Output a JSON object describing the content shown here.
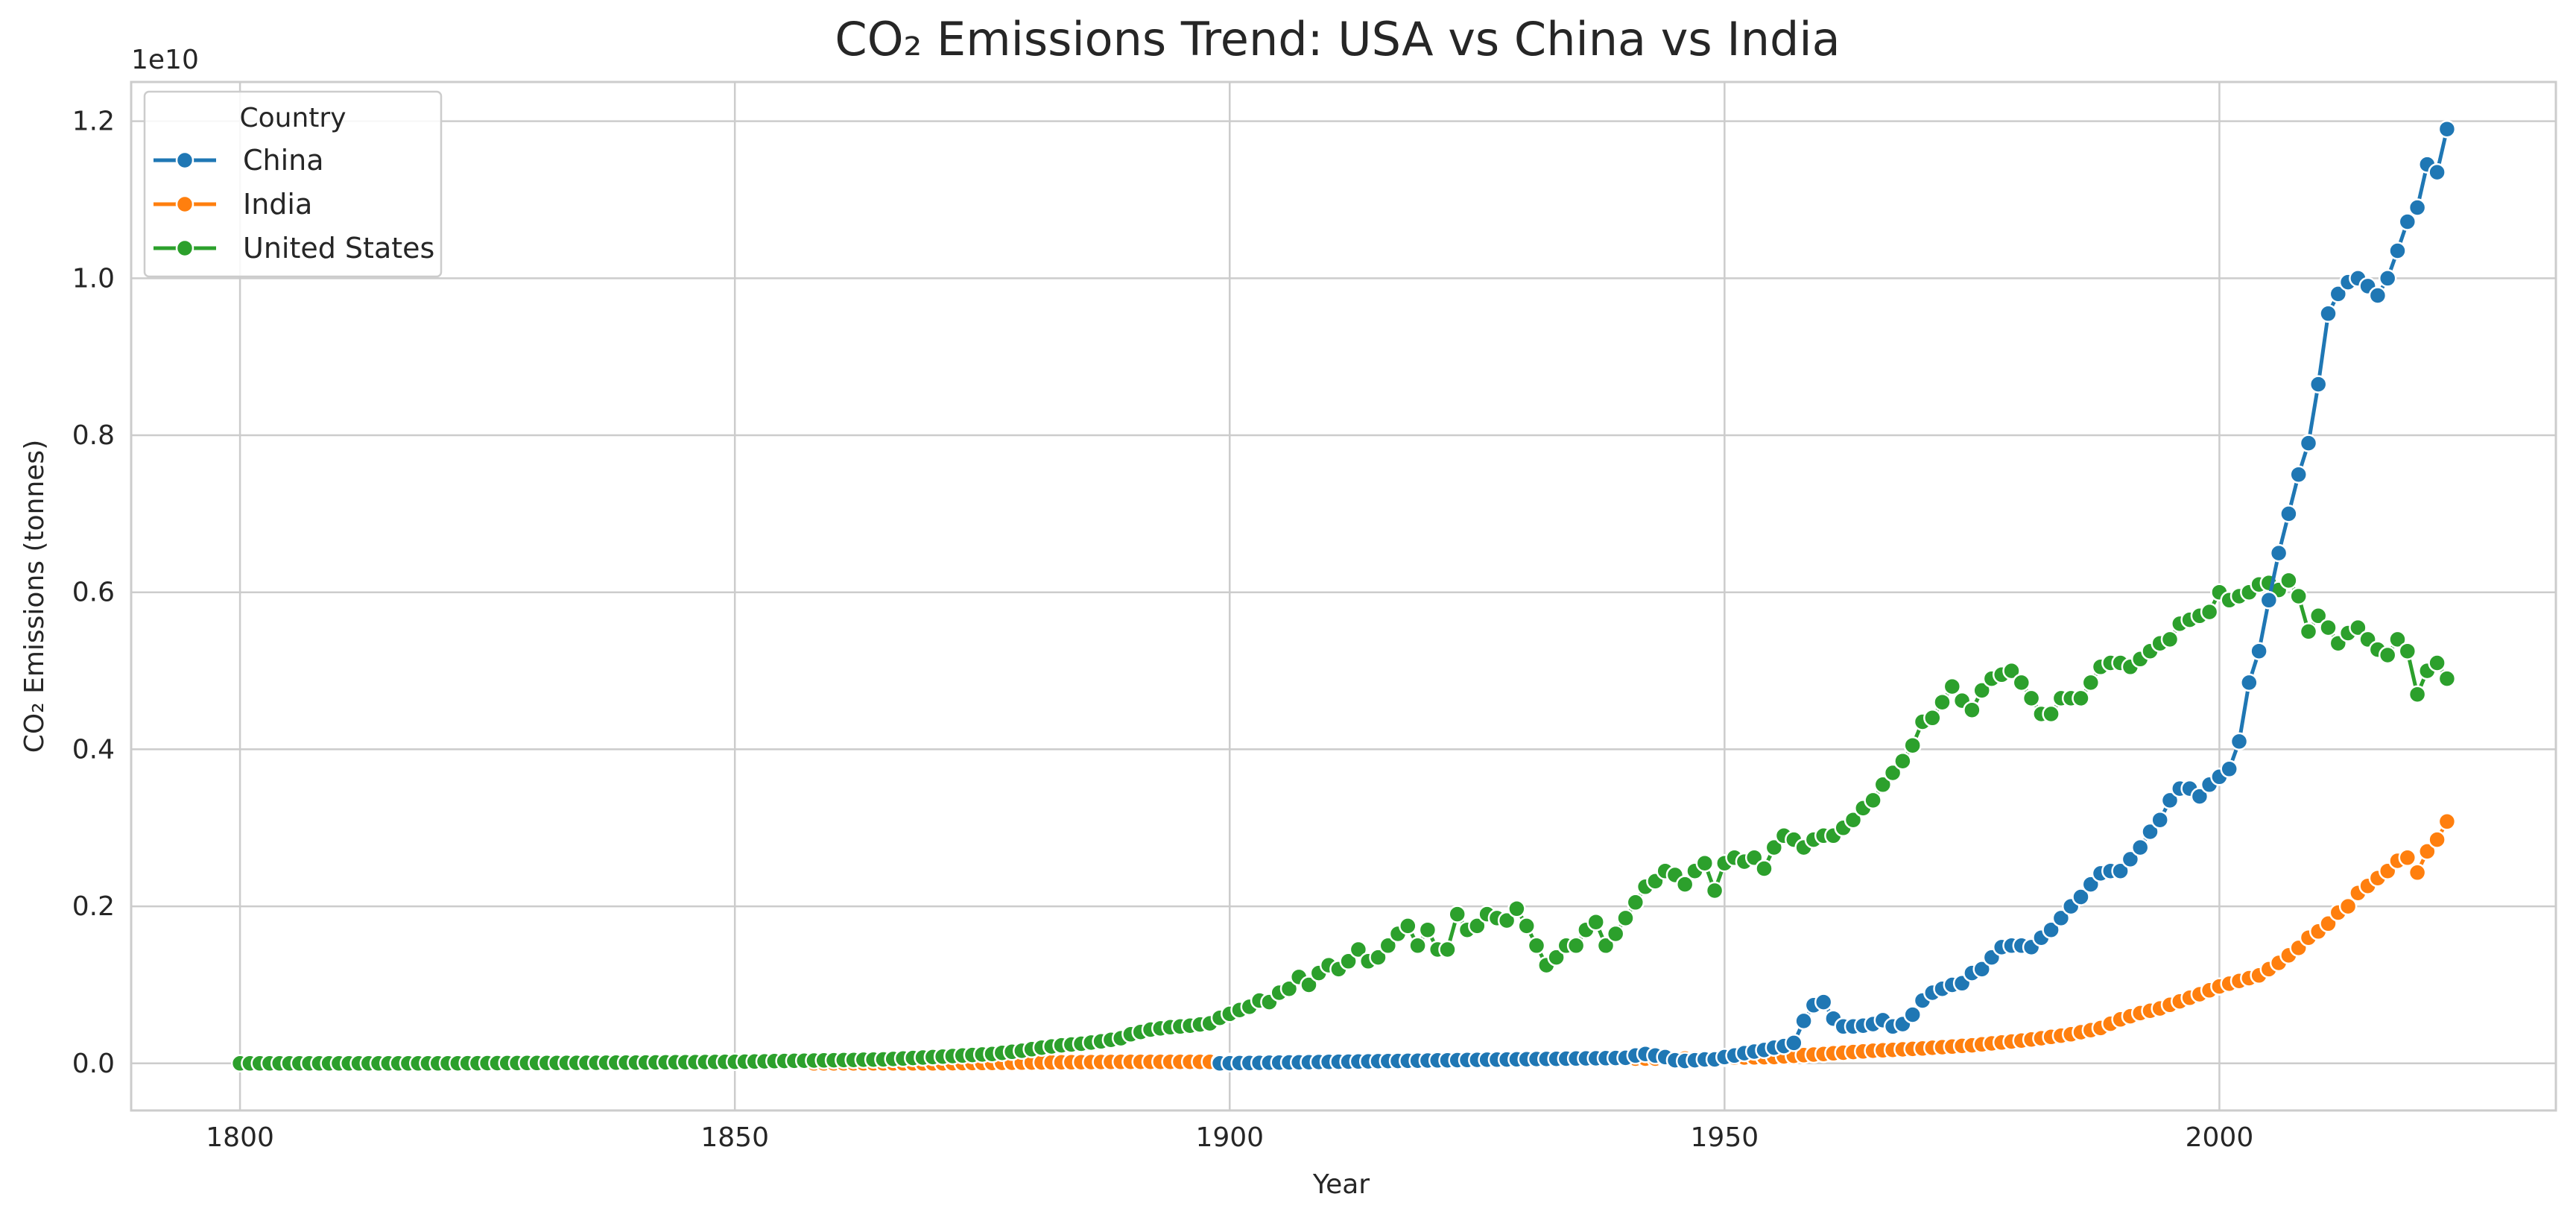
{
  "chart_data": {
    "type": "line",
    "title": "CO₂ Emissions Trend: USA vs China vs India",
    "xlabel": "Year",
    "ylabel": "CO₂ Emissions (tonnes)",
    "y_offset_label": "1e10",
    "xlim": [
      1789,
      2034
    ],
    "ylim": [
      -0.06,
      1.25
    ],
    "y_unit_note": "values in units of 1e10 tonnes",
    "x_ticks": [
      1800,
      1850,
      1900,
      1950,
      2000
    ],
    "y_ticks": [
      0.0,
      0.2,
      0.4,
      0.6,
      0.8,
      1.0,
      1.2
    ],
    "y_tick_labels": [
      "0.0",
      "0.2",
      "0.4",
      "0.6",
      "0.8",
      "1.0",
      "1.2"
    ],
    "grid": true,
    "legend": {
      "title": "Country",
      "placement": "top-left"
    },
    "series": [
      {
        "name": "China",
        "color": "#1f77b4",
        "points": [
          [
            1899,
            0.0
          ],
          [
            1940,
            0.007
          ],
          [
            1941,
            0.01
          ],
          [
            1942,
            0.012
          ],
          [
            1943,
            0.01
          ],
          [
            1944,
            0.008
          ],
          [
            1945,
            0.004
          ],
          [
            1946,
            0.003
          ],
          [
            1947,
            0.004
          ],
          [
            1948,
            0.005
          ],
          [
            1949,
            0.005
          ],
          [
            1950,
            0.008
          ],
          [
            1951,
            0.01
          ],
          [
            1952,
            0.013
          ],
          [
            1953,
            0.015
          ],
          [
            1954,
            0.017
          ],
          [
            1955,
            0.02
          ],
          [
            1956,
            0.022
          ],
          [
            1957,
            0.026
          ],
          [
            1958,
            0.054
          ],
          [
            1959,
            0.074
          ],
          [
            1960,
            0.078
          ],
          [
            1961,
            0.057
          ],
          [
            1962,
            0.047
          ],
          [
            1963,
            0.047
          ],
          [
            1964,
            0.048
          ],
          [
            1965,
            0.05
          ],
          [
            1966,
            0.055
          ],
          [
            1967,
            0.047
          ],
          [
            1968,
            0.05
          ],
          [
            1969,
            0.062
          ],
          [
            1970,
            0.08
          ],
          [
            1971,
            0.09
          ],
          [
            1972,
            0.095
          ],
          [
            1973,
            0.1
          ],
          [
            1974,
            0.102
          ],
          [
            1975,
            0.115
          ],
          [
            1976,
            0.12
          ],
          [
            1977,
            0.135
          ],
          [
            1978,
            0.148
          ],
          [
            1979,
            0.15
          ],
          [
            1980,
            0.15
          ],
          [
            1981,
            0.148
          ],
          [
            1982,
            0.16
          ],
          [
            1983,
            0.17
          ],
          [
            1984,
            0.185
          ],
          [
            1985,
            0.2
          ],
          [
            1986,
            0.212
          ],
          [
            1987,
            0.228
          ],
          [
            1988,
            0.242
          ],
          [
            1989,
            0.245
          ],
          [
            1990,
            0.245
          ],
          [
            1991,
            0.26
          ],
          [
            1992,
            0.275
          ],
          [
            1993,
            0.295
          ],
          [
            1994,
            0.31
          ],
          [
            1995,
            0.335
          ],
          [
            1996,
            0.35
          ],
          [
            1997,
            0.35
          ],
          [
            1998,
            0.34
          ],
          [
            1999,
            0.355
          ],
          [
            2000,
            0.365
          ],
          [
            2001,
            0.375
          ],
          [
            2002,
            0.41
          ],
          [
            2003,
            0.485
          ],
          [
            2004,
            0.525
          ],
          [
            2005,
            0.59
          ],
          [
            2006,
            0.65
          ],
          [
            2007,
            0.7
          ],
          [
            2008,
            0.75
          ],
          [
            2009,
            0.79
          ],
          [
            2010,
            0.865
          ],
          [
            2011,
            0.955
          ],
          [
            2012,
            0.98
          ],
          [
            2013,
            0.995
          ],
          [
            2014,
            1.0
          ],
          [
            2015,
            0.99
          ],
          [
            2016,
            0.978
          ],
          [
            2017,
            1.0
          ],
          [
            2018,
            1.035
          ],
          [
            2019,
            1.072
          ],
          [
            2020,
            1.09
          ],
          [
            2021,
            1.145
          ],
          [
            2022,
            1.135
          ],
          [
            2023,
            1.19
          ]
        ]
      },
      {
        "name": "India",
        "color": "#ff7f0e",
        "points": [
          [
            1858,
            0.0
          ],
          [
            1870,
            0.0
          ],
          [
            1880,
            0.001
          ],
          [
            1890,
            0.002
          ],
          [
            1900,
            0.002
          ],
          [
            1910,
            0.003
          ],
          [
            1920,
            0.004
          ],
          [
            1930,
            0.005
          ],
          [
            1940,
            0.006
          ],
          [
            1945,
            0.006
          ],
          [
            1950,
            0.007
          ],
          [
            1955,
            0.008
          ],
          [
            1960,
            0.012
          ],
          [
            1965,
            0.016
          ],
          [
            1970,
            0.019
          ],
          [
            1975,
            0.023
          ],
          [
            1980,
            0.029
          ],
          [
            1982,
            0.032
          ],
          [
            1985,
            0.037
          ],
          [
            1988,
            0.045
          ],
          [
            1990,
            0.056
          ],
          [
            1992,
            0.064
          ],
          [
            1994,
            0.07
          ],
          [
            1996,
            0.079
          ],
          [
            1998,
            0.088
          ],
          [
            2000,
            0.098
          ],
          [
            2002,
            0.105
          ],
          [
            2004,
            0.112
          ],
          [
            2006,
            0.128
          ],
          [
            2008,
            0.147
          ],
          [
            2009,
            0.16
          ],
          [
            2010,
            0.168
          ],
          [
            2011,
            0.178
          ],
          [
            2012,
            0.192
          ],
          [
            2013,
            0.2
          ],
          [
            2014,
            0.217
          ],
          [
            2015,
            0.226
          ],
          [
            2016,
            0.236
          ],
          [
            2017,
            0.245
          ],
          [
            2018,
            0.258
          ],
          [
            2019,
            0.262
          ],
          [
            2020,
            0.243
          ],
          [
            2021,
            0.27
          ],
          [
            2022,
            0.285
          ],
          [
            2023,
            0.308
          ]
        ]
      },
      {
        "name": "United States",
        "color": "#2ca02c",
        "points": [
          [
            1800,
            0.0
          ],
          [
            1820,
            0.0
          ],
          [
            1840,
            0.001
          ],
          [
            1850,
            0.002
          ],
          [
            1855,
            0.003
          ],
          [
            1860,
            0.004
          ],
          [
            1865,
            0.005
          ],
          [
            1870,
            0.008
          ],
          [
            1873,
            0.01
          ],
          [
            1876,
            0.012
          ],
          [
            1879,
            0.016
          ],
          [
            1881,
            0.02
          ],
          [
            1883,
            0.023
          ],
          [
            1885,
            0.025
          ],
          [
            1887,
            0.028
          ],
          [
            1889,
            0.032
          ],
          [
            1890,
            0.037
          ],
          [
            1892,
            0.043
          ],
          [
            1894,
            0.046
          ],
          [
            1896,
            0.048
          ],
          [
            1898,
            0.051
          ],
          [
            1899,
            0.058
          ],
          [
            1900,
            0.063
          ],
          [
            1901,
            0.068
          ],
          [
            1902,
            0.072
          ],
          [
            1903,
            0.08
          ],
          [
            1904,
            0.078
          ],
          [
            1905,
            0.09
          ],
          [
            1906,
            0.095
          ],
          [
            1907,
            0.11
          ],
          [
            1908,
            0.1
          ],
          [
            1909,
            0.115
          ],
          [
            1910,
            0.125
          ],
          [
            1911,
            0.12
          ],
          [
            1912,
            0.13
          ],
          [
            1913,
            0.145
          ],
          [
            1914,
            0.13
          ],
          [
            1915,
            0.135
          ],
          [
            1916,
            0.15
          ],
          [
            1917,
            0.165
          ],
          [
            1918,
            0.175
          ],
          [
            1919,
            0.15
          ],
          [
            1920,
            0.17
          ],
          [
            1921,
            0.145
          ],
          [
            1922,
            0.145
          ],
          [
            1923,
            0.19
          ],
          [
            1924,
            0.17
          ],
          [
            1925,
            0.175
          ],
          [
            1926,
            0.19
          ],
          [
            1927,
            0.185
          ],
          [
            1928,
            0.182
          ],
          [
            1929,
            0.197
          ],
          [
            1930,
            0.175
          ],
          [
            1931,
            0.15
          ],
          [
            1932,
            0.125
          ],
          [
            1933,
            0.135
          ],
          [
            1934,
            0.15
          ],
          [
            1935,
            0.15
          ],
          [
            1936,
            0.17
          ],
          [
            1937,
            0.18
          ],
          [
            1938,
            0.15
          ],
          [
            1939,
            0.165
          ],
          [
            1940,
            0.185
          ],
          [
            1941,
            0.205
          ],
          [
            1942,
            0.225
          ],
          [
            1943,
            0.232
          ],
          [
            1944,
            0.245
          ],
          [
            1945,
            0.24
          ],
          [
            1946,
            0.228
          ],
          [
            1947,
            0.245
          ],
          [
            1948,
            0.255
          ],
          [
            1949,
            0.22
          ],
          [
            1950,
            0.255
          ],
          [
            1951,
            0.262
          ],
          [
            1952,
            0.257
          ],
          [
            1953,
            0.262
          ],
          [
            1954,
            0.248
          ],
          [
            1955,
            0.275
          ],
          [
            1956,
            0.29
          ],
          [
            1957,
            0.285
          ],
          [
            1958,
            0.275
          ],
          [
            1959,
            0.285
          ],
          [
            1960,
            0.29
          ],
          [
            1961,
            0.29
          ],
          [
            1962,
            0.3
          ],
          [
            1963,
            0.31
          ],
          [
            1964,
            0.325
          ],
          [
            1965,
            0.335
          ],
          [
            1966,
            0.355
          ],
          [
            1967,
            0.37
          ],
          [
            1968,
            0.385
          ],
          [
            1969,
            0.405
          ],
          [
            1970,
            0.435
          ],
          [
            1971,
            0.44
          ],
          [
            1972,
            0.46
          ],
          [
            1973,
            0.48
          ],
          [
            1974,
            0.462
          ],
          [
            1975,
            0.45
          ],
          [
            1976,
            0.475
          ],
          [
            1977,
            0.49
          ],
          [
            1978,
            0.495
          ],
          [
            1979,
            0.5
          ],
          [
            1980,
            0.485
          ],
          [
            1981,
            0.465
          ],
          [
            1982,
            0.445
          ],
          [
            1983,
            0.445
          ],
          [
            1984,
            0.465
          ],
          [
            1985,
            0.465
          ],
          [
            1986,
            0.465
          ],
          [
            1987,
            0.485
          ],
          [
            1988,
            0.505
          ],
          [
            1989,
            0.51
          ],
          [
            1990,
            0.51
          ],
          [
            1991,
            0.505
          ],
          [
            1992,
            0.515
          ],
          [
            1993,
            0.525
          ],
          [
            1994,
            0.535
          ],
          [
            1995,
            0.54
          ],
          [
            1996,
            0.56
          ],
          [
            1997,
            0.565
          ],
          [
            1998,
            0.57
          ],
          [
            1999,
            0.575
          ],
          [
            2000,
            0.6
          ],
          [
            2001,
            0.59
          ],
          [
            2002,
            0.595
          ],
          [
            2003,
            0.6
          ],
          [
            2004,
            0.61
          ],
          [
            2005,
            0.612
          ],
          [
            2006,
            0.603
          ],
          [
            2007,
            0.615
          ],
          [
            2008,
            0.595
          ],
          [
            2009,
            0.55
          ],
          [
            2010,
            0.57
          ],
          [
            2011,
            0.555
          ],
          [
            2012,
            0.535
          ],
          [
            2013,
            0.548
          ],
          [
            2014,
            0.555
          ],
          [
            2015,
            0.54
          ],
          [
            2016,
            0.527
          ],
          [
            2017,
            0.52
          ],
          [
            2018,
            0.54
          ],
          [
            2019,
            0.525
          ],
          [
            2020,
            0.47
          ],
          [
            2021,
            0.5
          ],
          [
            2022,
            0.51
          ],
          [
            2023,
            0.49
          ]
        ]
      }
    ]
  }
}
